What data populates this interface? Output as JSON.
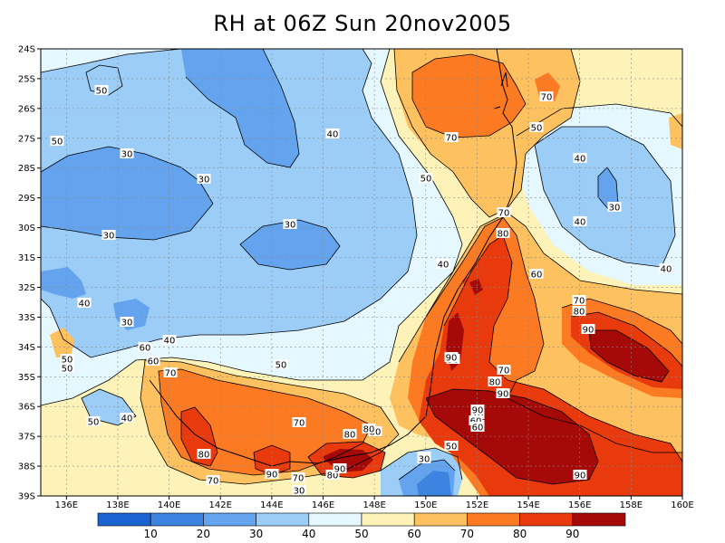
{
  "title": "RH at 06Z Sun 20nov2005",
  "lat_labels": [
    "24S",
    "25S",
    "26S",
    "27S",
    "28S",
    "29S",
    "30S",
    "31S",
    "32S",
    "33S",
    "34S",
    "35S",
    "36S",
    "37S",
    "38S",
    "39S"
  ],
  "lon_labels": [
    "136E",
    "138E",
    "140E",
    "142E",
    "144E",
    "146E",
    "148E",
    "150E",
    "152E",
    "154E",
    "156E",
    "158E",
    "160E"
  ],
  "colorbar": {
    "ticks": [
      "10",
      "20",
      "30",
      "40",
      "50",
      "60",
      "70",
      "80",
      "90"
    ],
    "colors": [
      "#1b63d0",
      "#3c84e0",
      "#64a4ee",
      "#9ccdf7",
      "#e6f8ff",
      "#fdf3b8",
      "#fdc160",
      "#fc7b22",
      "#e83a0c",
      "#a60a08"
    ]
  },
  "contour_labels": [
    {
      "text": "50"
    },
    {
      "text": "50"
    },
    {
      "text": "30"
    },
    {
      "text": "30"
    },
    {
      "text": "40"
    },
    {
      "text": "30"
    },
    {
      "text": "30"
    },
    {
      "text": "40"
    },
    {
      "text": "30"
    },
    {
      "text": "40"
    },
    {
      "text": "50"
    },
    {
      "text": "50"
    },
    {
      "text": "60"
    },
    {
      "text": "70"
    },
    {
      "text": "60"
    },
    {
      "text": "50"
    },
    {
      "text": "40"
    },
    {
      "text": "50"
    },
    {
      "text": "80"
    },
    {
      "text": "70"
    },
    {
      "text": "80"
    },
    {
      "text": "90"
    },
    {
      "text": "70"
    },
    {
      "text": "60"
    },
    {
      "text": "90"
    },
    {
      "text": "70"
    },
    {
      "text": "50"
    },
    {
      "text": "40"
    },
    {
      "text": "30"
    },
    {
      "text": "60"
    },
    {
      "text": "40"
    },
    {
      "text": "70"
    },
    {
      "text": "80"
    },
    {
      "text": "80"
    },
    {
      "text": "70"
    },
    {
      "text": "60"
    },
    {
      "text": "50"
    },
    {
      "text": "30"
    },
    {
      "text": "40"
    },
    {
      "text": "50"
    },
    {
      "text": "70"
    },
    {
      "text": "80"
    },
    {
      "text": "90"
    },
    {
      "text": "80"
    },
    {
      "text": "70"
    },
    {
      "text": "90"
    },
    {
      "text": "90"
    },
    {
      "text": "80"
    },
    {
      "text": "70"
    },
    {
      "text": "40"
    },
    {
      "text": "30"
    },
    {
      "text": "60"
    },
    {
      "text": "70"
    },
    {
      "text": "80"
    },
    {
      "text": "90"
    },
    {
      "text": "80"
    },
    {
      "text": "90"
    },
    {
      "text": "90"
    },
    {
      "text": "30"
    },
    {
      "text": "50"
    }
  ]
}
